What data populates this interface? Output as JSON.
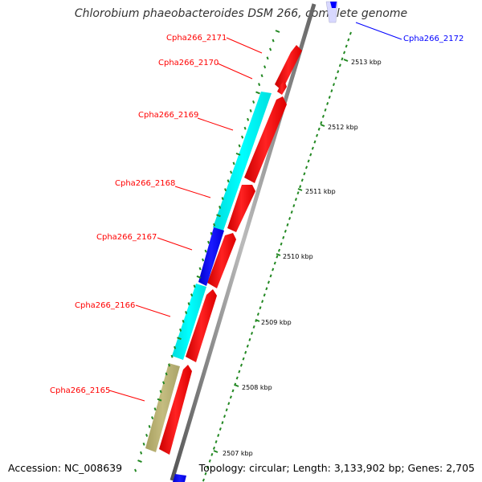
{
  "title": "Chlorobium phaeobacteroides DSM 266, complete genome",
  "footer": {
    "accession": "Accession: NC_008639",
    "summary": "Topology: circular; Length: 3,133,902 bp; Genes: 2,705"
  },
  "colors": {
    "forward_gene": "#ff0000",
    "reverse_cyan": "#00ffff",
    "reverse_blue": "#0000ff",
    "reverse_olive": "#b8b070",
    "pale_blue": "#d8d8ff",
    "tick": "#228822",
    "backbone": "#999999",
    "label_red": "#ff0000",
    "label_blue": "#0000ff"
  },
  "tick_labels": [
    "2513 kbp",
    "2512 kbp",
    "2511 kbp",
    "2510 kbp",
    "2509 kbp",
    "2508 kbp",
    "2507 kbp"
  ],
  "gene_labels": [
    {
      "text": "Cpha266_2171",
      "color": "red"
    },
    {
      "text": "Cpha266_2170",
      "color": "red"
    },
    {
      "text": "Cpha266_2169",
      "color": "red"
    },
    {
      "text": "Cpha266_2168",
      "color": "red"
    },
    {
      "text": "Cpha266_2167",
      "color": "red"
    },
    {
      "text": "Cpha266_2166",
      "color": "red"
    },
    {
      "text": "Cpha266_2165",
      "color": "red"
    },
    {
      "text": "Cpha266_2172",
      "color": "blue"
    }
  ]
}
